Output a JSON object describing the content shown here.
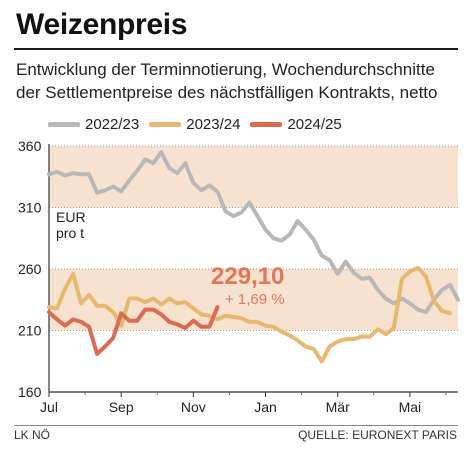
{
  "header": {
    "title": "Weizenpreis",
    "subtitle": "Entwicklung der Terminnotierung, Wochendurchschnitte der Settlementpreise des nächstfälligen Kontrakts, netto"
  },
  "footer": {
    "left": "LK NÖ",
    "right": "QUELLE: EURONEXT PARIS"
  },
  "colors": {
    "s2223": "#b8b8b8",
    "s2324": "#e9b870",
    "s2425": "#dd6b52",
    "band": "#f7e2cf",
    "highlight": "#e2775c"
  },
  "chart_data": {
    "type": "line",
    "unit_label": "EUR\npro t",
    "x_ticks": [
      "Jul",
      "Sep",
      "Nov",
      "Jan",
      "Mär",
      "Mai"
    ],
    "x_tick_weeks": [
      0,
      9,
      18,
      27,
      36,
      45
    ],
    "ylim": [
      160,
      360
    ],
    "y_ticks": [
      160,
      210,
      260,
      310,
      360
    ],
    "bands": [
      [
        310,
        360
      ],
      [
        210,
        260
      ]
    ],
    "legend_position": "top",
    "callout": {
      "value": "229,10",
      "change": "+ 1,69 %"
    },
    "series": [
      {
        "name": "2022/23",
        "color_key": "s2223",
        "values": [
          337,
          339,
          336,
          338,
          337,
          337,
          322,
          324,
          327,
          323,
          332,
          340,
          349,
          346,
          355,
          342,
          338,
          346,
          330,
          324,
          328,
          323,
          307,
          303,
          306,
          314,
          303,
          292,
          285,
          283,
          288,
          299,
          292,
          284,
          271,
          267,
          256,
          266,
          257,
          252,
          253,
          243,
          236,
          232,
          236,
          232,
          227,
          225,
          235,
          243,
          247,
          235
        ]
      },
      {
        "name": "2023/24",
        "color_key": "s2324",
        "values": [
          229,
          228,
          244,
          256,
          232,
          239,
          230,
          230,
          225,
          214,
          236,
          236,
          233,
          236,
          231,
          236,
          232,
          233,
          228,
          223,
          222,
          219,
          222,
          221,
          220,
          217,
          217,
          214,
          213,
          209,
          206,
          202,
          197,
          195,
          185,
          197,
          201,
          203,
          203,
          205,
          205,
          211,
          207,
          212,
          252,
          258,
          261,
          254,
          234,
          226,
          224
        ]
      },
      {
        "name": "2024/25",
        "color_key": "s2425",
        "values": [
          225,
          219,
          214,
          219,
          217,
          213,
          191,
          197,
          204,
          224,
          218,
          218,
          227,
          227,
          223,
          217,
          215,
          212,
          218,
          213,
          213,
          229
        ]
      }
    ]
  }
}
